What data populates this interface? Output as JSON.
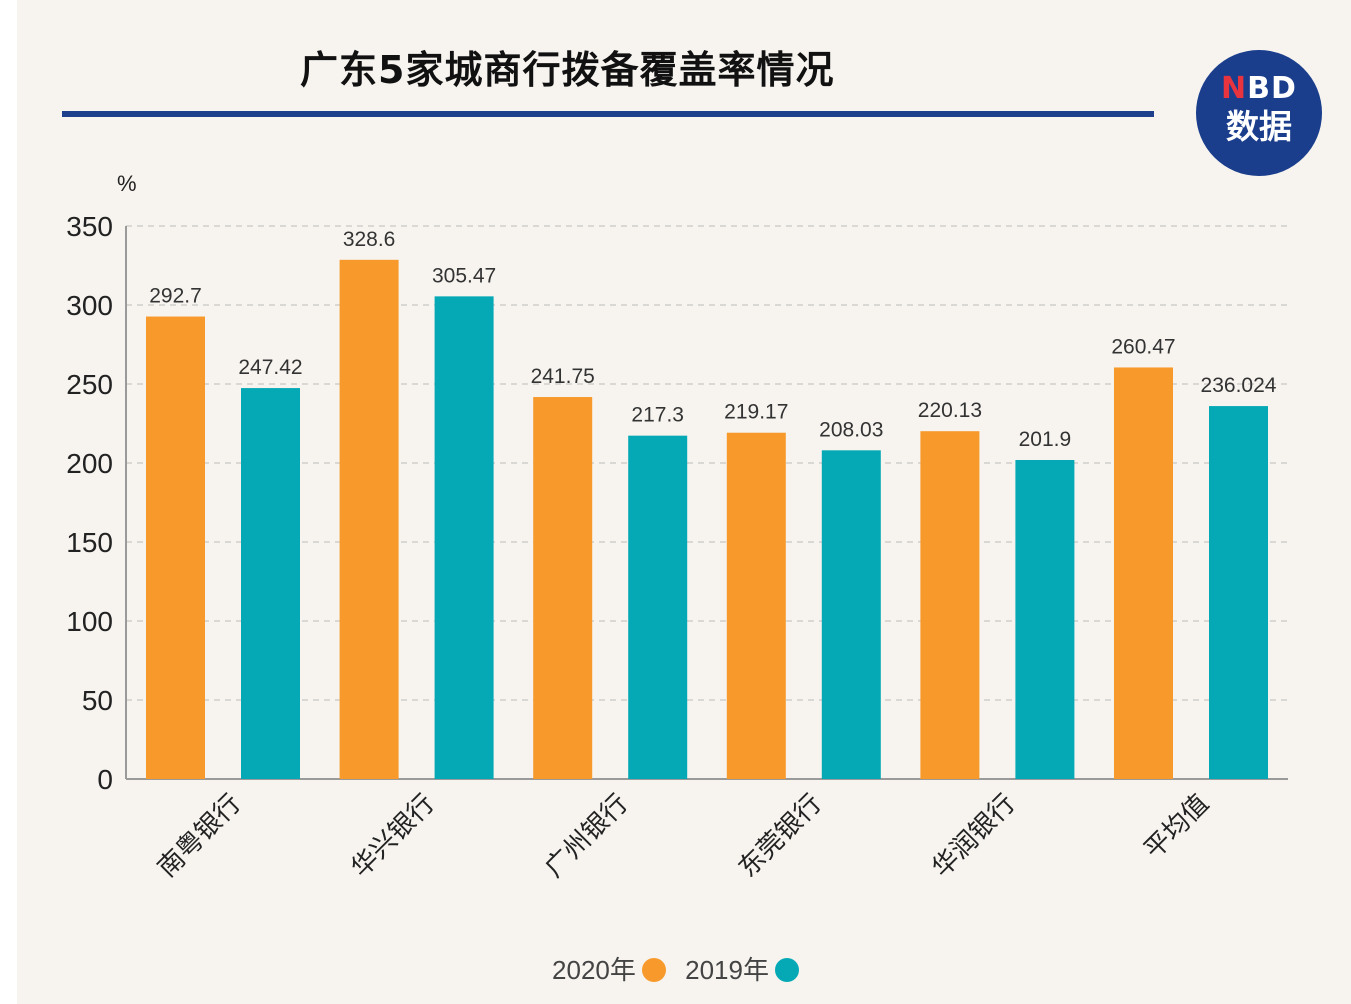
{
  "chart_data": {
    "type": "bar",
    "title": "广东5家城商行拨备覆盖率情况",
    "ylabel": "%",
    "categories": [
      "南粤银行",
      "华兴银行",
      "广州银行",
      "东莞银行",
      "华润银行",
      "平均值"
    ],
    "series": [
      {
        "name": "2020年",
        "color": "#f7992b",
        "values": [
          292.7,
          328.6,
          241.75,
          219.17,
          220.13,
          260.47
        ]
      },
      {
        "name": "2019年",
        "color": "#05a9b5",
        "values": [
          247.42,
          305.47,
          217.3,
          208.03,
          201.9,
          236.024
        ]
      }
    ],
    "ylim": [
      0,
      350
    ],
    "yticks": [
      0,
      50,
      100,
      150,
      200,
      250,
      300,
      350
    ],
    "grid": true,
    "legend_position": "bottom-center",
    "data_labels": true
  },
  "logo": {
    "line1_mark": "N",
    "line1_text": "BD",
    "line2_text": "数据"
  }
}
